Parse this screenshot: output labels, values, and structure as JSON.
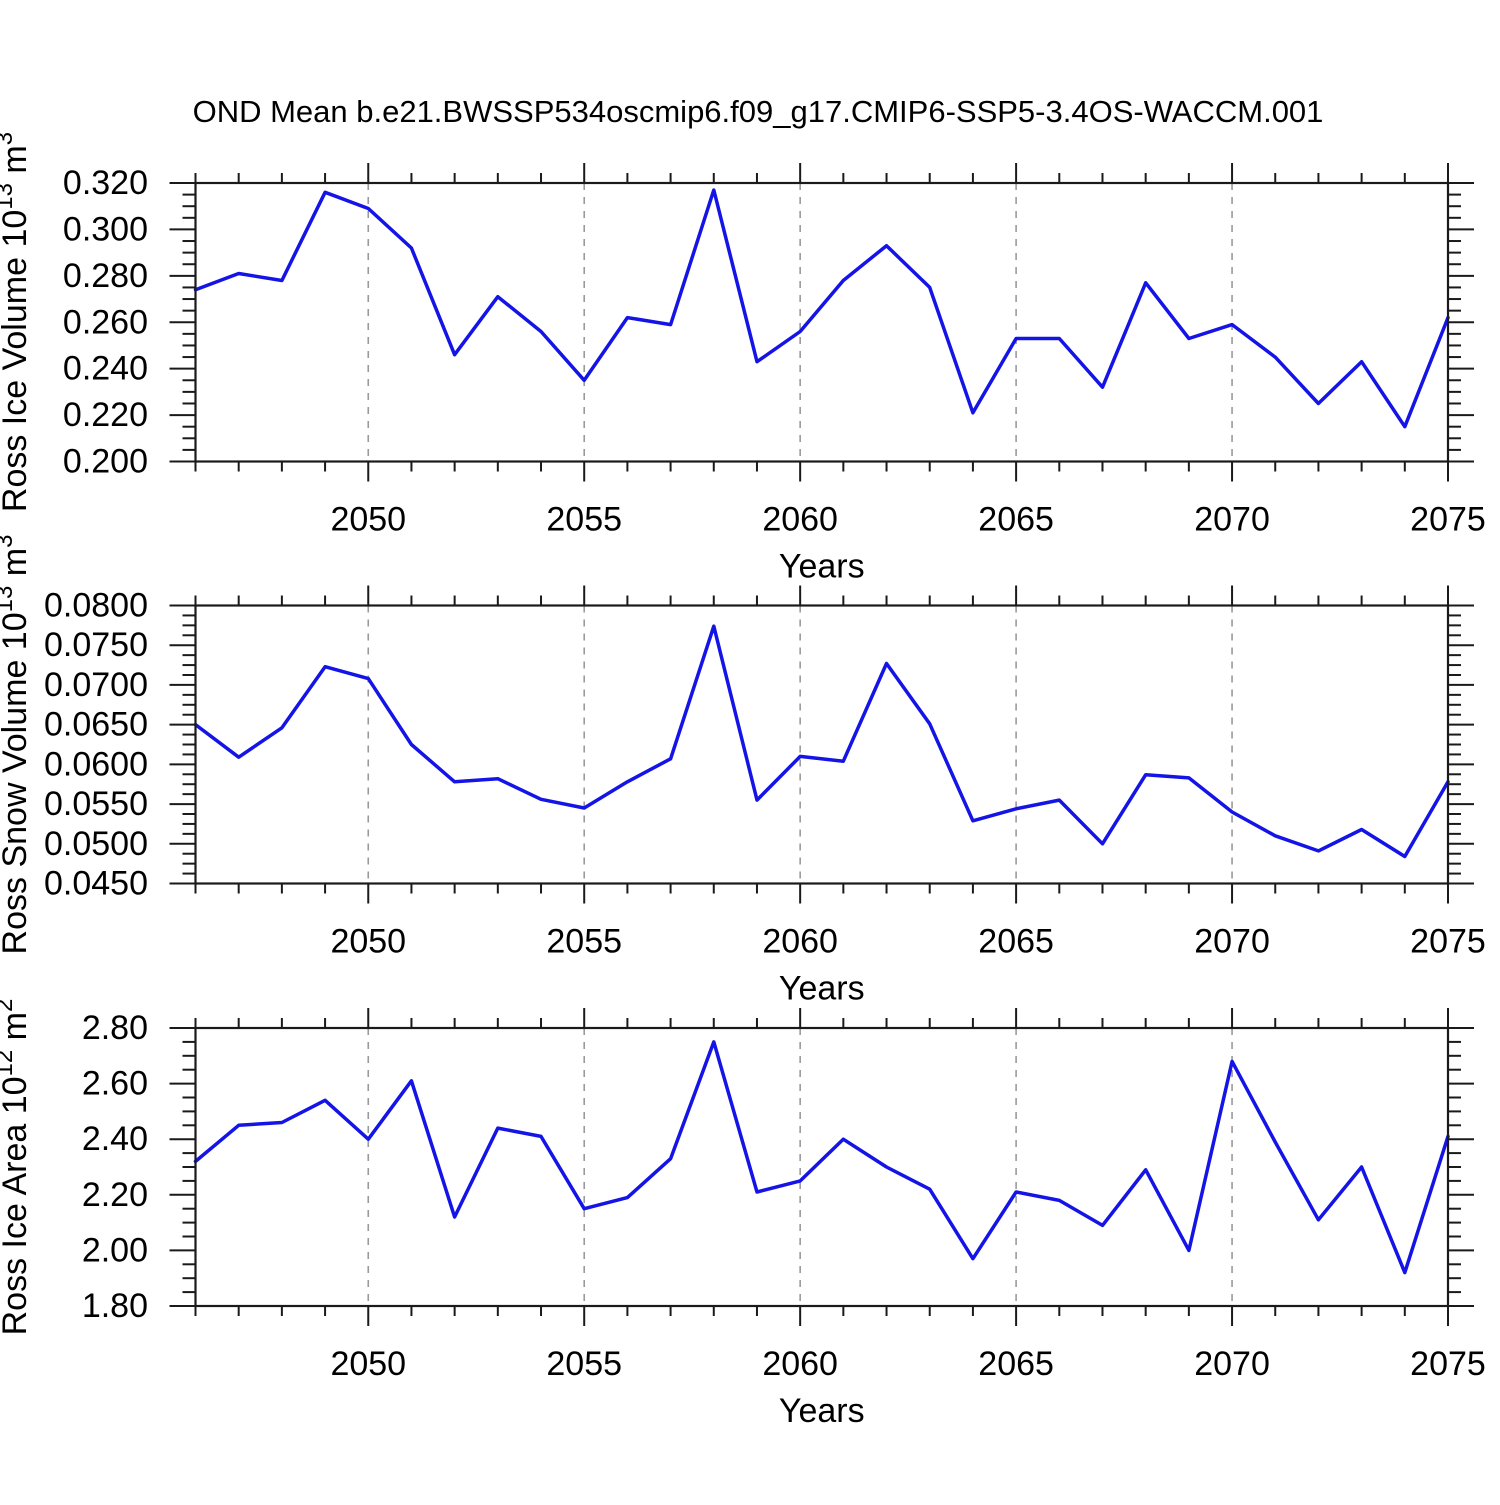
{
  "page": {
    "title": "OND Mean b.e21.BWSSP534oscmip6.f09_g17.CMIP6-SSP5-3.4OS-WACCM.001"
  },
  "colors": {
    "line": "#1414e6",
    "grid": "#9a9a9a",
    "frame": "#1a1a1a",
    "text": "#000000",
    "background": "#ffffff"
  },
  "x_axis": {
    "label": "Years",
    "start": 2046,
    "end": 2075,
    "labeled_ticks": [
      2050,
      2055,
      2060,
      2065,
      2070,
      2075
    ],
    "minor_step": 1,
    "grid": "vertical-dashed"
  },
  "chart_data": [
    {
      "type": "line",
      "name": "Ross Ice Volume",
      "ylabel": {
        "base": "Ross Ice Volume 10",
        "sup1": "13",
        "mid": " m",
        "sup2": "3"
      },
      "xlabel": "Years",
      "ylim": [
        0.2,
        0.32
      ],
      "ytick_step": 0.02,
      "yminor_step": 0.005,
      "ytick_decimals": 3,
      "x": [
        2046,
        2047,
        2048,
        2049,
        2050,
        2051,
        2052,
        2053,
        2054,
        2055,
        2056,
        2057,
        2058,
        2059,
        2060,
        2061,
        2062,
        2063,
        2064,
        2065,
        2066,
        2067,
        2068,
        2069,
        2070,
        2071,
        2072,
        2073,
        2074,
        2075
      ],
      "values": [
        0.274,
        0.281,
        0.278,
        0.316,
        0.309,
        0.292,
        0.246,
        0.271,
        0.256,
        0.235,
        0.262,
        0.259,
        0.317,
        0.243,
        0.256,
        0.278,
        0.293,
        0.275,
        0.221,
        0.253,
        0.253,
        0.232,
        0.277,
        0.253,
        0.259,
        0.245,
        0.225,
        0.243,
        0.215,
        0.262
      ]
    },
    {
      "type": "line",
      "name": "Ross Snow Volume",
      "ylabel": {
        "base": "Ross Snow Volume 10",
        "sup1": "13",
        "mid": " m",
        "sup2": "3"
      },
      "xlabel": "Years",
      "ylim": [
        0.045,
        0.08
      ],
      "ytick_step": 0.005,
      "yminor_step": 0.00125,
      "ytick_decimals": 4,
      "x": [
        2046,
        2047,
        2048,
        2049,
        2050,
        2051,
        2052,
        2053,
        2054,
        2055,
        2056,
        2057,
        2058,
        2059,
        2060,
        2061,
        2062,
        2063,
        2064,
        2065,
        2066,
        2067,
        2068,
        2069,
        2070,
        2071,
        2072,
        2073,
        2074,
        2075
      ],
      "values": [
        0.065,
        0.0609,
        0.0646,
        0.0723,
        0.0708,
        0.0625,
        0.0578,
        0.0582,
        0.0556,
        0.0545,
        0.0578,
        0.0607,
        0.0774,
        0.0555,
        0.061,
        0.0604,
        0.0727,
        0.0651,
        0.0529,
        0.0544,
        0.0555,
        0.05,
        0.0587,
        0.0583,
        0.054,
        0.051,
        0.0491,
        0.0518,
        0.0484,
        0.0578
      ]
    },
    {
      "type": "line",
      "name": "Ross Ice Area",
      "ylabel": {
        "base": "Ross Ice Area 10",
        "sup1": "12",
        "mid": " m",
        "sup2": "2"
      },
      "xlabel": "Years",
      "ylim": [
        1.8,
        2.8
      ],
      "ytick_step": 0.2,
      "yminor_step": 0.05,
      "ytick_decimals": 2,
      "x": [
        2046,
        2047,
        2048,
        2049,
        2050,
        2051,
        2052,
        2053,
        2054,
        2055,
        2056,
        2057,
        2058,
        2059,
        2060,
        2061,
        2062,
        2063,
        2064,
        2065,
        2066,
        2067,
        2068,
        2069,
        2070,
        2071,
        2072,
        2073,
        2074,
        2075
      ],
      "values": [
        2.32,
        2.45,
        2.46,
        2.54,
        2.4,
        2.61,
        2.12,
        2.44,
        2.41,
        2.15,
        2.19,
        2.33,
        2.75,
        2.21,
        2.25,
        2.4,
        2.3,
        2.22,
        1.97,
        2.21,
        2.18,
        2.09,
        2.29,
        2.0,
        2.68,
        2.39,
        2.11,
        2.3,
        1.92,
        2.41
      ]
    }
  ]
}
